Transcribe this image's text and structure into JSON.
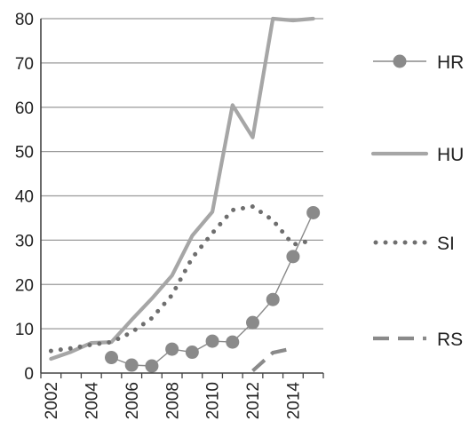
{
  "chart_data": {
    "type": "line",
    "title": "",
    "xlabel": "",
    "ylabel": "",
    "xlim": [
      2002,
      2015
    ],
    "ylim": [
      0,
      80
    ],
    "x_ticks": [
      "2002",
      "2004",
      "2006",
      "2008",
      "2010",
      "2012",
      "2014"
    ],
    "y_ticks": [
      "0",
      "10",
      "20",
      "30",
      "40",
      "50",
      "60",
      "70",
      "80"
    ],
    "grid": "horizontal",
    "legend": "right",
    "series": [
      {
        "name": "HR",
        "style": "line-with-circle-markers",
        "color": "#8a8a8a",
        "x": [
          2005,
          2006,
          2007,
          2008,
          2009,
          2010,
          2011,
          2012,
          2013,
          2014,
          2015
        ],
        "y": [
          3.5,
          1.8,
          1.6,
          5.4,
          4.7,
          7.2,
          7.0,
          11.4,
          16.6,
          26.3,
          36.2
        ]
      },
      {
        "name": "HU",
        "style": "thick-solid",
        "color": "#a6a6a6",
        "x": [
          2002,
          2003,
          2004,
          2005,
          2006,
          2007,
          2008,
          2009,
          2010,
          2011,
          2012,
          2013,
          2014,
          2015
        ],
        "y": [
          3.2,
          4.8,
          6.8,
          7.0,
          12.0,
          16.8,
          22.0,
          31.0,
          36.4,
          60.5,
          53.2,
          80.0,
          79.6,
          80.0
        ]
      },
      {
        "name": "SI",
        "style": "dotted",
        "color": "#6e6e6e",
        "x": [
          2002,
          2003,
          2004,
          2005,
          2006,
          2007,
          2008,
          2009,
          2010,
          2011,
          2012,
          2013,
          2014,
          2015
        ],
        "y": [
          5.0,
          5.6,
          6.4,
          7.0,
          9.2,
          12.4,
          17.6,
          26.0,
          31.6,
          36.8,
          37.6,
          34.5,
          29.0,
          30.0
        ]
      },
      {
        "name": "RS",
        "style": "dashed",
        "color": "#8a8a8a",
        "x": [
          2012,
          2013,
          2014
        ],
        "y": [
          0.5,
          4.6,
          5.6
        ]
      }
    ]
  }
}
